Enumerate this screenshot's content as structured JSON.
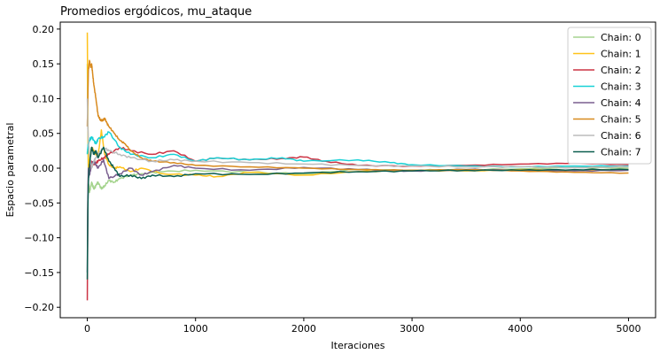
{
  "chart_data": {
    "type": "line",
    "title": "Promedios ergódicos, mu_ataque",
    "xlabel": "Iteraciones",
    "ylabel": "Espacio parametral",
    "xlim": [
      -250,
      5250
    ],
    "ylim": [
      -0.215,
      0.21
    ],
    "xticks": [
      0,
      1000,
      2000,
      3000,
      4000,
      5000
    ],
    "yticks": [
      -0.2,
      -0.15,
      -0.1,
      -0.05,
      0.0,
      0.05,
      0.1,
      0.15,
      0.2
    ],
    "xtick_labels": [
      "0",
      "1000",
      "2000",
      "3000",
      "4000",
      "5000"
    ],
    "ytick_labels": [
      "−0.20",
      "−0.15",
      "−0.10",
      "−0.05",
      "0.00",
      "0.05",
      "0.10",
      "0.15",
      "0.20"
    ],
    "grid": false,
    "legend_position": "top-right",
    "series": [
      {
        "name": "Chain: 0",
        "color": "#a6d48f",
        "x": [
          0,
          10,
          20,
          40,
          60,
          80,
          100,
          130,
          160,
          200,
          250,
          300,
          400,
          500,
          700,
          1000,
          1500,
          2000,
          2500,
          3000,
          3500,
          4000,
          4500,
          5000
        ],
        "y": [
          0.15,
          -0.02,
          -0.035,
          -0.02,
          -0.03,
          -0.025,
          -0.02,
          -0.03,
          -0.025,
          -0.018,
          -0.02,
          -0.015,
          -0.01,
          -0.008,
          -0.005,
          -0.003,
          -0.006,
          -0.008,
          -0.002,
          -0.003,
          -0.002,
          -0.001,
          0.001,
          0.0
        ]
      },
      {
        "name": "Chain: 1",
        "color": "#ffc21a",
        "x": [
          0,
          5,
          10,
          20,
          40,
          60,
          80,
          100,
          130,
          160,
          200,
          250,
          300,
          400,
          500,
          700,
          1000,
          1200,
          1500,
          2000,
          2500,
          3000,
          3500,
          4000,
          4500,
          5000
        ],
        "y": [
          0.195,
          0.08,
          0.0,
          0.01,
          0.03,
          0.025,
          0.02,
          0.018,
          0.055,
          0.02,
          0.005,
          0.0,
          0.002,
          -0.005,
          0.0,
          -0.008,
          -0.01,
          -0.012,
          -0.006,
          -0.01,
          -0.005,
          -0.003,
          -0.004,
          -0.002,
          -0.003,
          -0.002
        ]
      },
      {
        "name": "Chain: 2",
        "color": "#cc3344",
        "x": [
          0,
          5,
          10,
          20,
          40,
          60,
          80,
          100,
          150,
          200,
          300,
          400,
          600,
          800,
          1000,
          1200,
          1500,
          1800,
          2000,
          2200,
          2500,
          3000,
          3500,
          4000,
          4500,
          5000
        ],
        "y": [
          -0.19,
          -0.05,
          -0.01,
          0.0,
          0.01,
          0.005,
          0.008,
          0.01,
          0.015,
          0.02,
          0.03,
          0.025,
          0.02,
          0.025,
          0.01,
          0.015,
          0.012,
          0.014,
          0.016,
          0.01,
          0.004,
          0.003,
          0.004,
          0.006,
          0.007,
          0.005
        ]
      },
      {
        "name": "Chain: 3",
        "color": "#19d1d6",
        "x": [
          0,
          5,
          10,
          20,
          40,
          60,
          80,
          100,
          150,
          200,
          300,
          400,
          600,
          800,
          1000,
          1200,
          1500,
          1800,
          2000,
          2500,
          2800,
          3000,
          3500,
          4000,
          4500,
          5000
        ],
        "y": [
          0.02,
          0.03,
          0.035,
          0.04,
          0.045,
          0.04,
          0.035,
          0.042,
          0.045,
          0.052,
          0.03,
          0.02,
          0.015,
          0.02,
          0.01,
          0.015,
          0.012,
          0.015,
          0.01,
          0.012,
          0.008,
          0.005,
          0.003,
          0.002,
          0.003,
          0.003
        ]
      },
      {
        "name": "Chain: 4",
        "color": "#7a5f8f",
        "x": [
          0,
          5,
          10,
          20,
          40,
          60,
          80,
          100,
          150,
          200,
          300,
          400,
          500,
          600,
          800,
          1000,
          1500,
          2000,
          2500,
          3000,
          3500,
          4000,
          4500,
          5000
        ],
        "y": [
          -0.15,
          -0.04,
          0.0,
          -0.01,
          0.005,
          0.01,
          0.005,
          0.0,
          0.012,
          -0.015,
          -0.008,
          0.0,
          -0.01,
          -0.005,
          0.004,
          0.0,
          -0.003,
          0.001,
          -0.002,
          -0.004,
          -0.002,
          -0.003,
          -0.004,
          -0.003
        ]
      },
      {
        "name": "Chain: 5",
        "color": "#d88a1e",
        "x": [
          0,
          5,
          10,
          20,
          30,
          40,
          50,
          60,
          80,
          100,
          120,
          140,
          160,
          180,
          200,
          250,
          300,
          350,
          400,
          500,
          600,
          800,
          1000,
          1500,
          2000,
          2500,
          3000,
          3500,
          4000,
          4500,
          5000
        ],
        "y": [
          0.06,
          0.1,
          0.14,
          0.155,
          0.145,
          0.15,
          0.135,
          0.12,
          0.1,
          0.075,
          0.07,
          0.068,
          0.072,
          0.065,
          0.06,
          0.05,
          0.04,
          0.035,
          0.025,
          0.015,
          0.01,
          0.008,
          0.004,
          0.002,
          0.0,
          -0.002,
          -0.003,
          -0.002,
          -0.004,
          -0.006,
          -0.007
        ]
      },
      {
        "name": "Chain: 6",
        "color": "#bcbcbc",
        "x": [
          0,
          5,
          10,
          20,
          40,
          60,
          80,
          100,
          150,
          200,
          300,
          400,
          600,
          800,
          1000,
          1500,
          2000,
          2500,
          3000,
          3500,
          4000,
          4500,
          5000
        ],
        "y": [
          0.1,
          0.06,
          0.04,
          0.02,
          0.0,
          0.01,
          0.015,
          0.02,
          0.03,
          0.025,
          0.02,
          0.015,
          0.01,
          0.012,
          0.01,
          0.008,
          0.006,
          0.004,
          0.003,
          0.002,
          0.002,
          0.001,
          0.002
        ]
      },
      {
        "name": "Chain: 7",
        "color": "#0b5e4f",
        "x": [
          0,
          5,
          10,
          20,
          40,
          60,
          80,
          100,
          150,
          200,
          250,
          300,
          400,
          500,
          600,
          800,
          1000,
          1500,
          2000,
          2500,
          3000,
          3500,
          4000,
          4500,
          5000
        ],
        "y": [
          -0.16,
          -0.06,
          -0.02,
          0.005,
          0.03,
          0.02,
          0.025,
          0.015,
          0.03,
          0.01,
          0.0,
          -0.012,
          -0.01,
          -0.015,
          -0.01,
          -0.012,
          -0.008,
          -0.009,
          -0.007,
          -0.005,
          -0.004,
          -0.003,
          -0.003,
          -0.002,
          -0.002
        ]
      }
    ]
  }
}
